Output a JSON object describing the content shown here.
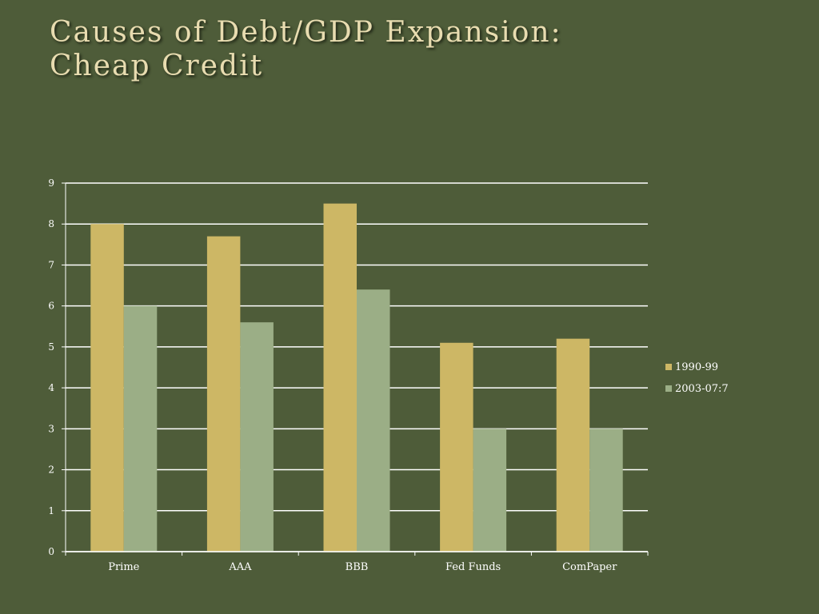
{
  "slide": {
    "title_line1": "Causes of Debt/GDP Expansion:",
    "title_line2": "Cheap Credit"
  },
  "colors": {
    "background": "#4e5c39",
    "series1": "#cdb765",
    "series2": "#9bae86",
    "grid": "#ffffff",
    "text": "#ffffff"
  },
  "chart_data": {
    "type": "bar",
    "title": "",
    "xlabel": "",
    "ylabel": "",
    "categories": [
      "Prime",
      "AAA",
      "BBB",
      "Fed Funds",
      "ComPaper"
    ],
    "series": [
      {
        "name": "1990-99",
        "values": [
          8.0,
          7.7,
          8.5,
          5.1,
          5.2
        ]
      },
      {
        "name": "2003-07:7",
        "values": [
          6.0,
          5.6,
          6.4,
          3.0,
          3.0
        ]
      }
    ],
    "ylim": [
      0,
      9
    ],
    "yticks": [
      "0",
      "1",
      "2",
      "3",
      "4",
      "5",
      "6",
      "7",
      "8",
      "9"
    ],
    "grid": true,
    "legend_position": "right"
  }
}
